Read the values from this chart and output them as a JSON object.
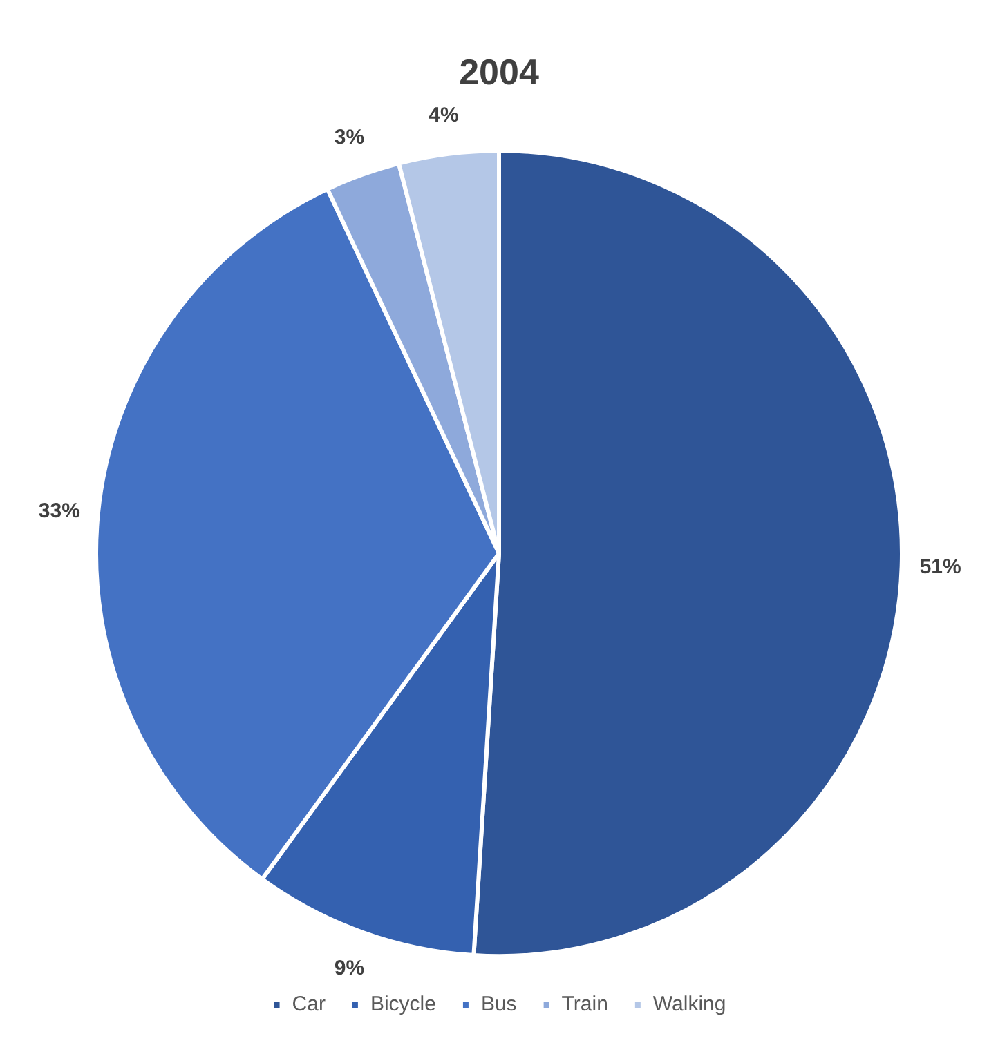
{
  "chart_data": {
    "type": "pie",
    "title": "2004",
    "categories": [
      "Car",
      "Bicycle",
      "Bus",
      "Train",
      "Walking"
    ],
    "values": [
      51,
      9,
      33,
      3,
      4
    ],
    "colors": [
      "#2f5597",
      "#3461b0",
      "#4472c4",
      "#8ea9db",
      "#b4c7e7"
    ],
    "value_labels": [
      "51%",
      "9%",
      "33%",
      "3%",
      "4%"
    ],
    "legend": "bottom"
  }
}
